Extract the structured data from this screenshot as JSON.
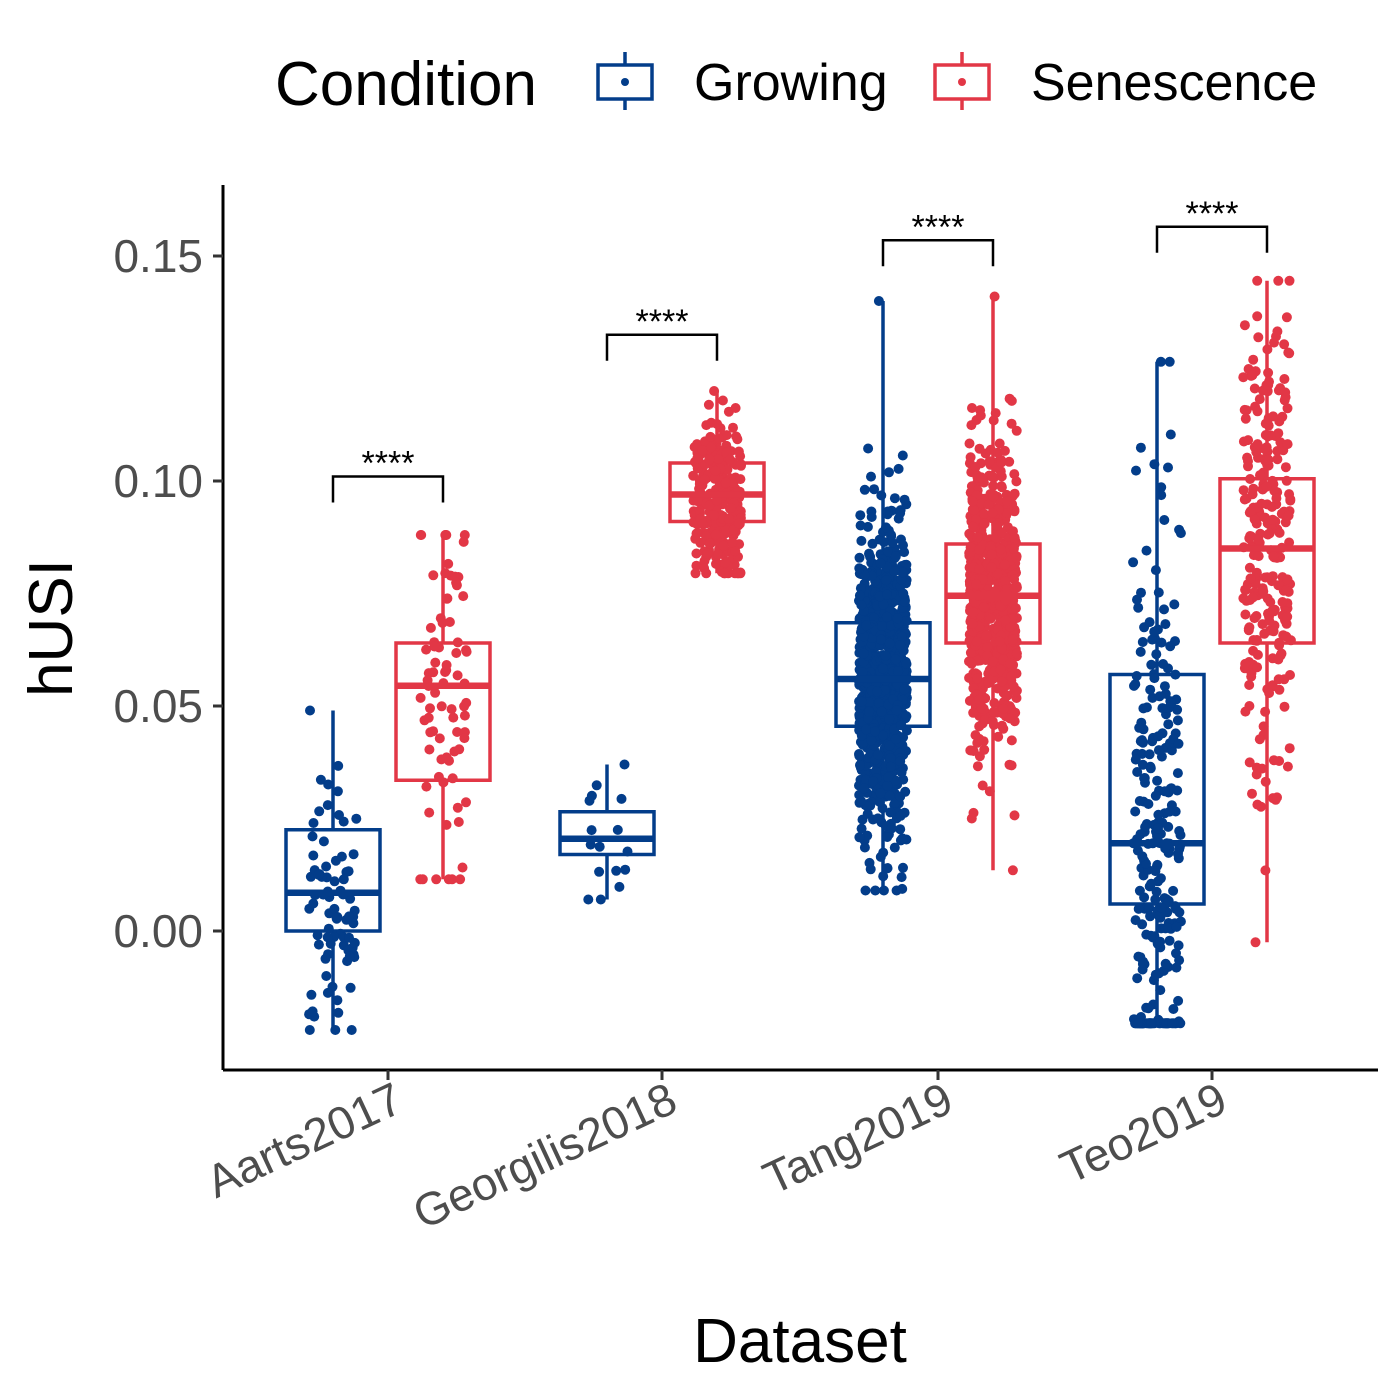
{
  "chart_data": {
    "type": "boxplot",
    "xlabel": "Dataset",
    "ylabel": "hUSI",
    "ylim": [
      -0.031,
      0.165
    ],
    "yticks": [
      0.0,
      0.05,
      0.1,
      0.15
    ],
    "ytick_labels": [
      "0.00",
      "0.05",
      "0.10",
      "0.15"
    ],
    "grid": false,
    "legend": {
      "title": "Condition",
      "position": "top",
      "entries": [
        {
          "name": "Growing",
          "color": "#033D8A"
        },
        {
          "name": "Senescence",
          "color": "#E23746"
        }
      ]
    },
    "categories": [
      "Aarts2017",
      "Georgilis2018",
      "Tang2019",
      "Teo2019"
    ],
    "series": [
      {
        "name": "Growing",
        "color": "#033D8A",
        "boxes": [
          {
            "q1": 0.0,
            "median": 0.0085,
            "q3": 0.0225,
            "whisker_low": -0.022,
            "whisker_high": 0.049,
            "n_points": 80
          },
          {
            "q1": 0.017,
            "median": 0.0205,
            "q3": 0.0265,
            "whisker_low": 0.007,
            "whisker_high": 0.037,
            "n_points": 16
          },
          {
            "q1": 0.0455,
            "median": 0.056,
            "q3": 0.0685,
            "whisker_low": 0.009,
            "whisker_high": 0.14,
            "n_points": 900
          },
          {
            "q1": 0.006,
            "median": 0.0195,
            "q3": 0.057,
            "whisker_low": -0.0205,
            "whisker_high": 0.1265,
            "n_points": 260
          }
        ]
      },
      {
        "name": "Senescence",
        "color": "#E23746",
        "boxes": [
          {
            "q1": 0.0335,
            "median": 0.0545,
            "q3": 0.064,
            "whisker_low": 0.0115,
            "whisker_high": 0.088,
            "n_points": 80
          },
          {
            "q1": 0.091,
            "median": 0.097,
            "q3": 0.104,
            "whisker_low": 0.0795,
            "whisker_high": 0.12,
            "n_points": 260
          },
          {
            "q1": 0.064,
            "median": 0.0745,
            "q3": 0.086,
            "whisker_low": 0.0135,
            "whisker_high": 0.141,
            "n_points": 700
          },
          {
            "q1": 0.064,
            "median": 0.085,
            "q3": 0.1005,
            "whisker_low": -0.0025,
            "whisker_high": 0.1445,
            "n_points": 260
          }
        ]
      }
    ],
    "annotations": [
      {
        "category": "Aarts2017",
        "label": "****",
        "bracket_y": 0.101
      },
      {
        "category": "Georgilis2018",
        "label": "****",
        "bracket_y": 0.1325
      },
      {
        "category": "Tang2019",
        "label": "****",
        "bracket_y": 0.1535
      },
      {
        "category": "Teo2019",
        "label": "****",
        "bracket_y": 0.1565
      }
    ]
  }
}
